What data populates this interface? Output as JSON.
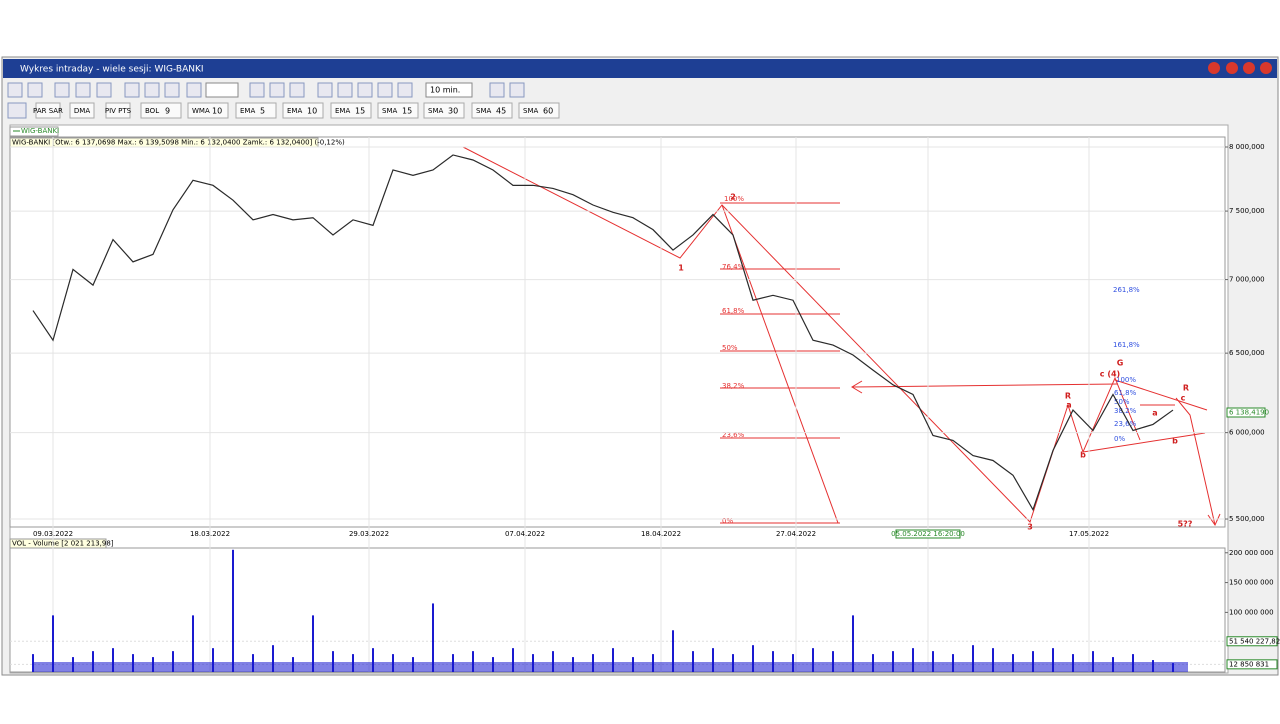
{
  "window": {
    "title": "Wykres intraday -  wiele sesji: WIG-BANKI"
  },
  "toolbar": {
    "interval": "10 min.",
    "indicators": [
      {
        "name": "PAR SAR"
      },
      {
        "name": "DMA"
      },
      {
        "name": "PIV PTS"
      },
      {
        "name": "BOL",
        "param": "9"
      },
      {
        "name": "WMA",
        "param": "10"
      },
      {
        "name": "EMA",
        "param": "5"
      },
      {
        "name": "EMA",
        "param": "10"
      },
      {
        "name": "EMA",
        "param": "15"
      },
      {
        "name": "SMA",
        "param": "15"
      },
      {
        "name": "SMA",
        "param": "30"
      },
      {
        "name": "SMA",
        "param": "45"
      },
      {
        "name": "SMA",
        "param": "60"
      }
    ]
  },
  "chart_data": [
    {
      "type": "line",
      "legend": "WIG-BANKI",
      "title": "WIG-BANKI [Otw.: 6 137,0698  Max.: 6 139,5098  Min.: 6 132,0400  Zamk.: 6 132,0400] (-0,12%)",
      "last_price_label": "6 138,4190",
      "log_scale": true,
      "color": "#2a2a2a",
      "xlim": [
        0,
        57
      ],
      "xticks": [
        {
          "value": 1,
          "label": "09.03.2022"
        },
        {
          "value": 8.85,
          "label": "18.03.2022"
        },
        {
          "value": 16.8,
          "label": "29.03.2022"
        },
        {
          "value": 24.6,
          "label": "07.04.2022"
        },
        {
          "value": 31.4,
          "label": "18.04.2022"
        },
        {
          "value": 38.15,
          "label": "27.04.2022"
        },
        {
          "value": 44.75,
          "label": "05.05.2022 16:20:00"
        },
        {
          "value": 52.8,
          "label": "17.05.2022"
        }
      ],
      "ylim": [
        5456,
        8081
      ],
      "yticks": [
        {
          "value": 5500,
          "label": "5 500,000"
        },
        {
          "value": 6000,
          "label": "6 000,000"
        },
        {
          "value": 6500,
          "label": "6 500,000"
        },
        {
          "value": 7000,
          "label": "7 000,000"
        },
        {
          "value": 7500,
          "label": "7 500,000"
        },
        {
          "value": 8000,
          "label": "8 000,000"
        }
      ],
      "values": [
        6785,
        6585,
        7072,
        6961,
        7288,
        7126,
        7180,
        7510,
        7736,
        7697,
        7583,
        7434,
        7474,
        7434,
        7450,
        7322,
        7434,
        7393,
        7817,
        7775,
        7817,
        7936,
        7896,
        7817,
        7697,
        7697,
        7673,
        7625,
        7546,
        7491,
        7450,
        7361,
        7211,
        7322,
        7474,
        7322,
        6856,
        6890,
        6856,
        6585,
        6553,
        6488,
        6390,
        6296,
        6235,
        5983,
        5953,
        5863,
        5834,
        5748,
        5552,
        5893,
        6138,
        6013,
        6235,
        6013,
        6050,
        6138
      ],
      "annotations": {
        "fib_red": [
          "100%",
          "76,4%",
          "61,8%",
          "50%",
          "38,2%",
          "23,6%",
          "0%"
        ],
        "fib_blue": [
          "261,8%",
          "161,8%",
          "100%",
          "61,8%",
          "50%",
          "38,2%",
          "23,6%",
          "0%"
        ],
        "waves": [
          "2",
          "1",
          "3",
          "5??",
          "R",
          "a",
          "b",
          "G",
          "c (4)",
          "R",
          "c",
          "a",
          "b"
        ]
      }
    },
    {
      "type": "bar",
      "title": "VOL - Volume [2 021 213,98]",
      "color": "#1a1ad0",
      "ylim": [
        0,
        208000000
      ],
      "yticks": [
        {
          "value": 100000000,
          "label": "100 000 000"
        },
        {
          "value": 150000000,
          "label": "150 000 000"
        },
        {
          "value": 200000000,
          "label": "200 000 000"
        }
      ],
      "markers": [
        {
          "value": 51540227.82,
          "label": "51 540 227,82"
        },
        {
          "value": 12850831,
          "label": "12 850 831"
        }
      ],
      "values": [
        30000000,
        95000000,
        25000000,
        35000000,
        40000000,
        30000000,
        25000000,
        35000000,
        95000000,
        40000000,
        205000000,
        30000000,
        45000000,
        25000000,
        95000000,
        35000000,
        30000000,
        40000000,
        30000000,
        25000000,
        115000000,
        30000000,
        35000000,
        25000000,
        40000000,
        30000000,
        35000000,
        25000000,
        30000000,
        40000000,
        25000000,
        30000000,
        70000000,
        35000000,
        40000000,
        30000000,
        45000000,
        35000000,
        30000000,
        40000000,
        35000000,
        95000000,
        30000000,
        35000000,
        40000000,
        35000000,
        30000000,
        45000000,
        40000000,
        30000000,
        35000000,
        40000000,
        30000000,
        35000000,
        25000000,
        30000000,
        20000000,
        15000000
      ]
    }
  ]
}
